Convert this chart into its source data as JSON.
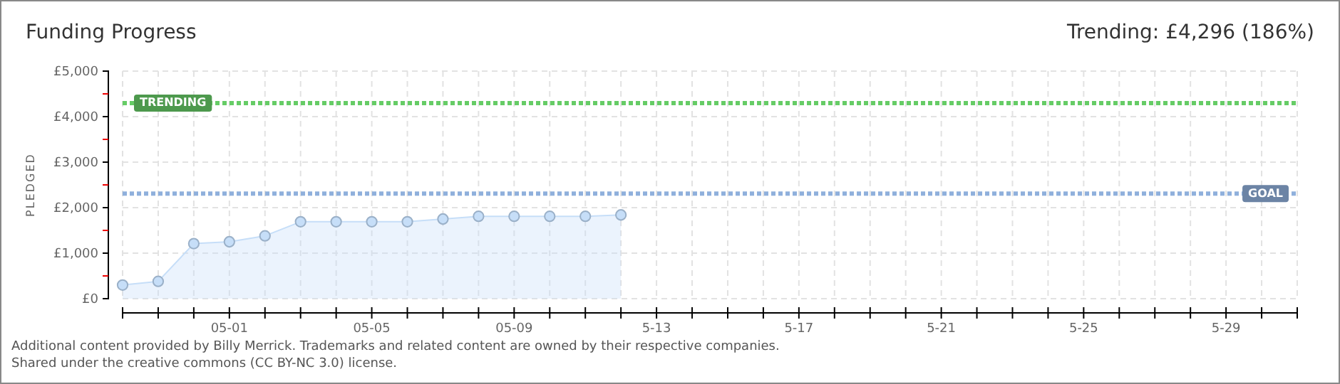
{
  "chart_data": {
    "type": "area",
    "title": "Funding Progress",
    "subtitle": "Trending: £4,296 (186%)",
    "ylabel": "PLEDGED",
    "x": [
      "--04-28",
      "--04-29",
      "--04-30",
      "--05-01",
      "--05-02",
      "--05-03",
      "--05-04",
      "--05-05",
      "--05-06",
      "--05-07",
      "--05-08",
      "--05-09",
      "--05-10",
      "--05-11",
      "--05-12"
    ],
    "series": [
      {
        "color": "#c6def8",
        "values": [
          300,
          380,
          1210,
          1250,
          1380,
          1690,
          1690,
          1690,
          1690,
          1750,
          1810,
          1810,
          1810,
          1810,
          1840
        ]
      }
    ],
    "marker": "circle",
    "grid": true,
    "xlim": [
      "--04-28",
      "--05-31"
    ],
    "xticks": [
      {
        "value": "--04-28",
        "label": null
      },
      {
        "value": "--04-29",
        "label": null
      },
      {
        "value": "--04-30",
        "label": null
      },
      {
        "value": "--05-01",
        "label": "05-01"
      },
      {
        "value": "--05-02",
        "label": null
      },
      {
        "value": "--05-03",
        "label": null
      },
      {
        "value": "--05-04",
        "label": null
      },
      {
        "value": "--05-05",
        "label": "05-05"
      },
      {
        "value": "--05-06",
        "label": null
      },
      {
        "value": "--05-07",
        "label": null
      },
      {
        "value": "--05-08",
        "label": null
      },
      {
        "value": "--05-09",
        "label": "05-09"
      },
      {
        "value": "--05-10",
        "label": null
      },
      {
        "value": "--05-11",
        "label": null
      },
      {
        "value": "--05-12",
        "label": null
      },
      {
        "value": "--05-13",
        "label": "5-13"
      },
      {
        "value": "--05-14",
        "label": null
      },
      {
        "value": "--05-15",
        "label": null
      },
      {
        "value": "--05-16",
        "label": null
      },
      {
        "value": "--05-17",
        "label": "5-17"
      },
      {
        "value": "--05-18",
        "label": null
      },
      {
        "value": "--05-19",
        "label": null
      },
      {
        "value": "--05-20",
        "label": null
      },
      {
        "value": "--05-21",
        "label": "5-21"
      },
      {
        "value": "--05-22",
        "label": null
      },
      {
        "value": "--05-23",
        "label": null
      },
      {
        "value": "--05-24",
        "label": null
      },
      {
        "value": "--05-25",
        "label": "5-25"
      },
      {
        "value": "--05-26",
        "label": null
      },
      {
        "value": "--05-27",
        "label": null
      },
      {
        "value": "--05-28",
        "label": null
      },
      {
        "value": "--05-29",
        "label": "5-29"
      },
      {
        "value": "--05-30",
        "label": null
      },
      {
        "value": "--05-31",
        "label": null
      }
    ],
    "ylim": [
      0,
      5000
    ],
    "yticks": [
      {
        "value": 0,
        "label": "£0"
      },
      {
        "value": 500,
        "label": null
      },
      {
        "value": 1000,
        "label": "£1,000"
      },
      {
        "value": 1500,
        "label": null
      },
      {
        "value": 2000,
        "label": "£2,000"
      },
      {
        "value": 2500,
        "label": null
      },
      {
        "value": 3000,
        "label": "£3,000"
      },
      {
        "value": 3500,
        "label": null
      },
      {
        "value": 4000,
        "label": "£4,000"
      },
      {
        "value": 4500,
        "label": null
      },
      {
        "value": 5000,
        "label": "£5,000"
      }
    ],
    "ref_lines": [
      {
        "axis": "y",
        "value": 4296,
        "label": "TRENDING",
        "color": "#66cc66",
        "line_style": "dotted"
      },
      {
        "axis": "y",
        "value": 2310,
        "label": "GOAL",
        "color": "#8fb0dc",
        "line_style": "dotted"
      }
    ],
    "annotations": [
      "Additional content provided by Billy Merrick. Trademarks and related content are owned by their respective companies.",
      "Shared under the creative commons (CC BY-NC 3.0) license."
    ]
  }
}
